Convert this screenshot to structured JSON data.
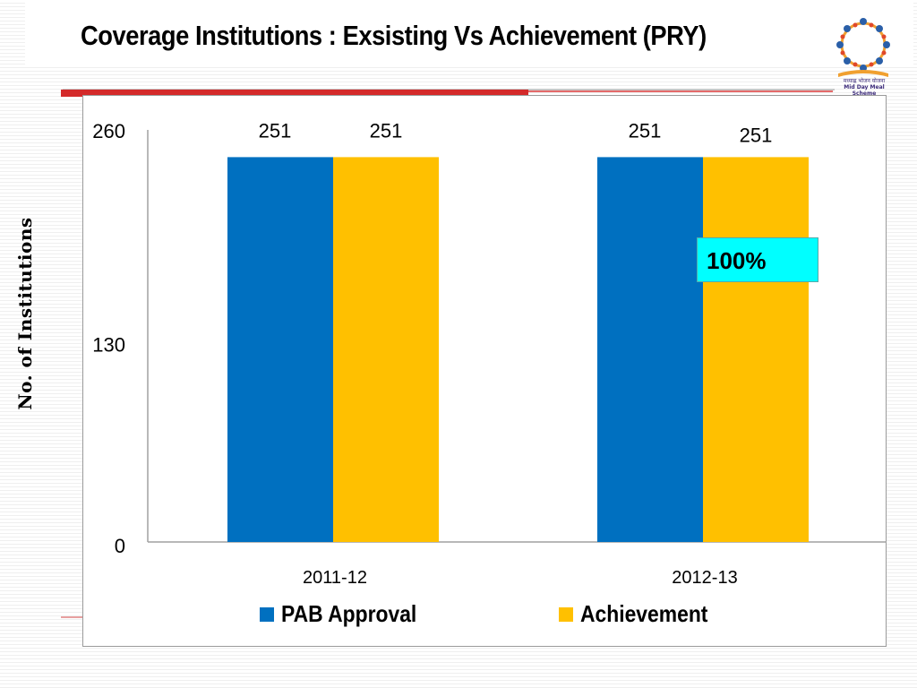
{
  "slide": {
    "title": "Coverage Institutions : Exsisting Vs Achievement (PRY)",
    "logo_caption_hindi": "मध्याह्न भोजन योजना",
    "logo_caption_en": "Mid Day Meal Scheme"
  },
  "colors": {
    "series_pab": "#0070c0",
    "series_achievement": "#ffc000",
    "callout_bg": "#00ffff",
    "accent_red": "#d42a2a"
  },
  "callout": {
    "text": "100%"
  },
  "chart_data": {
    "type": "bar",
    "title": "",
    "xlabel": "",
    "ylabel": "No. of Institutions",
    "categories": [
      "2011-12",
      "2012-13"
    ],
    "series": [
      {
        "name": "PAB Approval",
        "values": [
          251,
          251
        ]
      },
      {
        "name": "Achievement",
        "values": [
          251,
          251
        ]
      }
    ],
    "data_labels": [
      [
        "251",
        "251"
      ],
      [
        "251",
        "251"
      ]
    ],
    "ylim": [
      0,
      260
    ],
    "yticks": [
      0,
      130,
      260
    ],
    "grid": false,
    "legend": "bottom"
  }
}
